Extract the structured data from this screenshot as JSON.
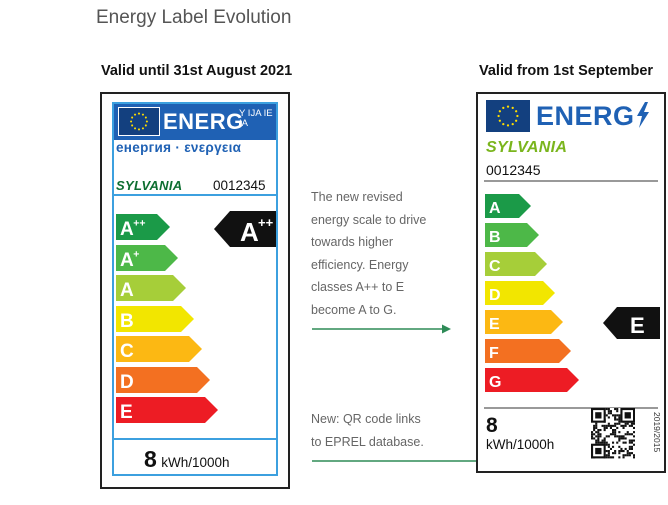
{
  "title": "Energy Label Evolution",
  "old_label": {
    "heading": "Valid until 31st August 2021",
    "energy_word": "ENERG",
    "energy_small": "Y IJA IE IA",
    "energy_subtitle": "енергия · ενεργεια",
    "brand": "SYLVANIA",
    "model": "0012345",
    "classes": [
      {
        "label": "A",
        "sup": "++",
        "color": "#1b9a48"
      },
      {
        "label": "A",
        "sup": "+",
        "color": "#4db848"
      },
      {
        "label": "A",
        "sup": "",
        "color": "#a6ce39"
      },
      {
        "label": "B",
        "sup": "",
        "color": "#f2e600"
      },
      {
        "label": "C",
        "sup": "",
        "color": "#fcb813"
      },
      {
        "label": "D",
        "sup": "",
        "color": "#f37021"
      },
      {
        "label": "E",
        "sup": "",
        "color": "#ed1c24"
      }
    ],
    "rating": {
      "label": "A",
      "sup": "++"
    },
    "kwh_value": "8",
    "kwh_unit": "kWh/1000h"
  },
  "new_label": {
    "heading": "Valid from 1st September",
    "energy_word": "ENERG",
    "brand": "SYLVANIA",
    "model": "0012345",
    "classes": [
      {
        "label": "A",
        "color": "#1b9a48"
      },
      {
        "label": "B",
        "color": "#4db848"
      },
      {
        "label": "C",
        "color": "#a6ce39"
      },
      {
        "label": "D",
        "color": "#f2e600"
      },
      {
        "label": "E",
        "color": "#fcb813"
      },
      {
        "label": "F",
        "color": "#f37021"
      },
      {
        "label": "G",
        "color": "#ed1c24"
      }
    ],
    "rating": {
      "label": "E"
    },
    "kwh_value": "8",
    "kwh_unit": "kWh/1000h",
    "registration": "2019/2015"
  },
  "notes": {
    "scale_lines": [
      "The new revised",
      "energy scale to drive",
      "towards higher",
      "efficiency. Energy",
      "classes A++ to E",
      "become A to G."
    ],
    "qr_lines": [
      "New: QR code links",
      "to EPREL database."
    ]
  },
  "colors": {
    "arrow_line": "#2e8b57",
    "eu_blue": "#1f61b4",
    "frame_blue": "#3ca0df"
  }
}
